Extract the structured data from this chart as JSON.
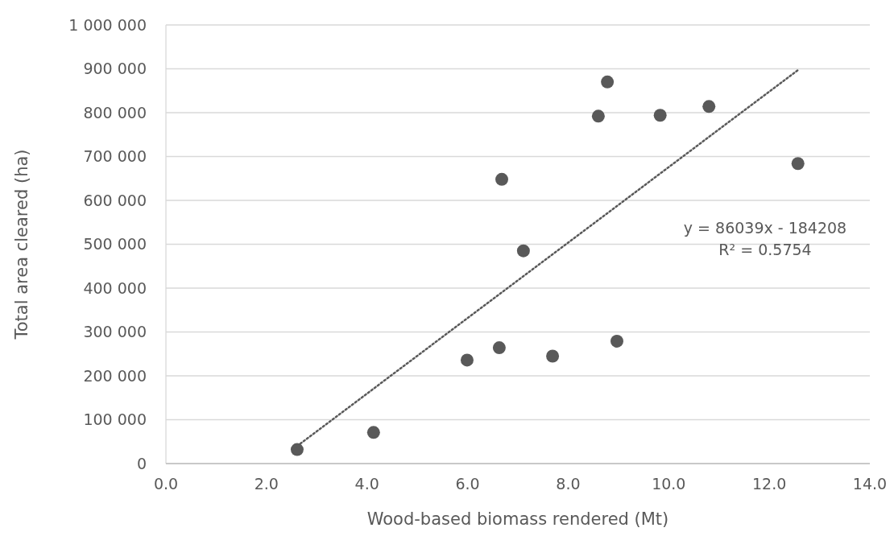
{
  "chart_data": {
    "type": "scatter",
    "xlabel": "Wood-based biomass rendered (Mt)",
    "ylabel": "Total area cleared (ha)",
    "xlim": [
      0,
      14
    ],
    "xticks": [
      {
        "value": 0,
        "label": "0.0"
      },
      {
        "value": 2,
        "label": "2.0"
      },
      {
        "value": 4,
        "label": "4.0"
      },
      {
        "value": 6,
        "label": "6.0"
      },
      {
        "value": 8,
        "label": "8.0"
      },
      {
        "value": 10,
        "label": "10.0"
      },
      {
        "value": 12,
        "label": "12.0"
      },
      {
        "value": 14,
        "label": "14.0"
      }
    ],
    "ylim": [
      0,
      1000000
    ],
    "yticks": [
      0,
      {
        "value": 100000,
        "label": "100 000"
      },
      {
        "value": 200000,
        "label": "200 000"
      },
      {
        "value": 300000,
        "label": "300 000"
      },
      {
        "value": 400000,
        "label": "400 000"
      },
      {
        "value": 500000,
        "label": "500 000"
      },
      {
        "value": 600000,
        "label": "600 000"
      },
      {
        "value": 700000,
        "label": "700 000"
      },
      {
        "value": 800000,
        "label": "800 000"
      },
      {
        "value": 900000,
        "label": "900 000"
      },
      {
        "value": 1000000,
        "label": "1 000 000"
      }
    ],
    "grid": "y",
    "marker": "circle",
    "annotations": [
      "y = 86039x - 184208",
      "R² = 0.5754"
    ],
    "series": [
      {
        "color": "#595959",
        "x": [
          2.61,
          4.13,
          5.99,
          6.63,
          7.69,
          8.97,
          6.68,
          7.11,
          8.6,
          8.78,
          9.83,
          10.8,
          12.57
        ],
        "values": [
          32000,
          71000,
          236000,
          264000,
          245000,
          279000,
          648000,
          485000,
          792000,
          870000,
          794000,
          814000,
          684000
        ]
      },
      {
        "type": "line",
        "color": "#595959",
        "line_style": "dotted",
        "marker": "none",
        "x": [
          2.61,
          12.57
        ],
        "values": [
          40000,
          897000
        ]
      }
    ]
  }
}
